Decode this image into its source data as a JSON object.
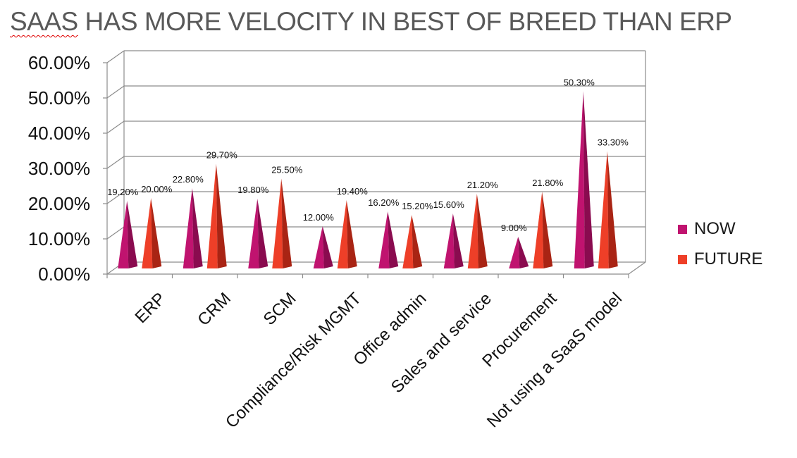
{
  "chart_data": {
    "type": "bar",
    "style": "3d-cone",
    "title_lead": "SAAS",
    "title_rest": " HAS MORE VELOCITY IN BEST OF BREED THAN ERP",
    "categories": [
      "ERP",
      "CRM",
      "SCM",
      "Compliance/Risk MGMT",
      "Office admin",
      "Sales and service",
      "Procurement",
      "Not using a SaaS model"
    ],
    "series": [
      {
        "name": "NOW",
        "color": "#c0136f",
        "dark": "#8a0b4f",
        "values": [
          19.2,
          22.8,
          19.8,
          12.0,
          16.2,
          15.6,
          9.0,
          50.3
        ],
        "labels": [
          "19.20%",
          "22.80%",
          "19.80%",
          "12.00%",
          "16.20%",
          "15.60%",
          "9.00%",
          "50.30%"
        ]
      },
      {
        "name": "FUTURE",
        "color": "#ee3f28",
        "dark": "#a92414",
        "values": [
          20.0,
          29.7,
          25.5,
          19.4,
          15.2,
          21.2,
          21.8,
          33.3
        ],
        "labels": [
          "20.00%",
          "29.70%",
          "25.50%",
          "19.40%",
          "15.20%",
          "21.20%",
          "21.80%",
          "33.30%"
        ]
      }
    ],
    "yticks": [
      "0.00%",
      "10.00%",
      "20.00%",
      "30.00%",
      "40.00%",
      "50.00%",
      "60.00%"
    ],
    "ylim": [
      0,
      60
    ],
    "ystep": 10,
    "legend_position": "right"
  }
}
